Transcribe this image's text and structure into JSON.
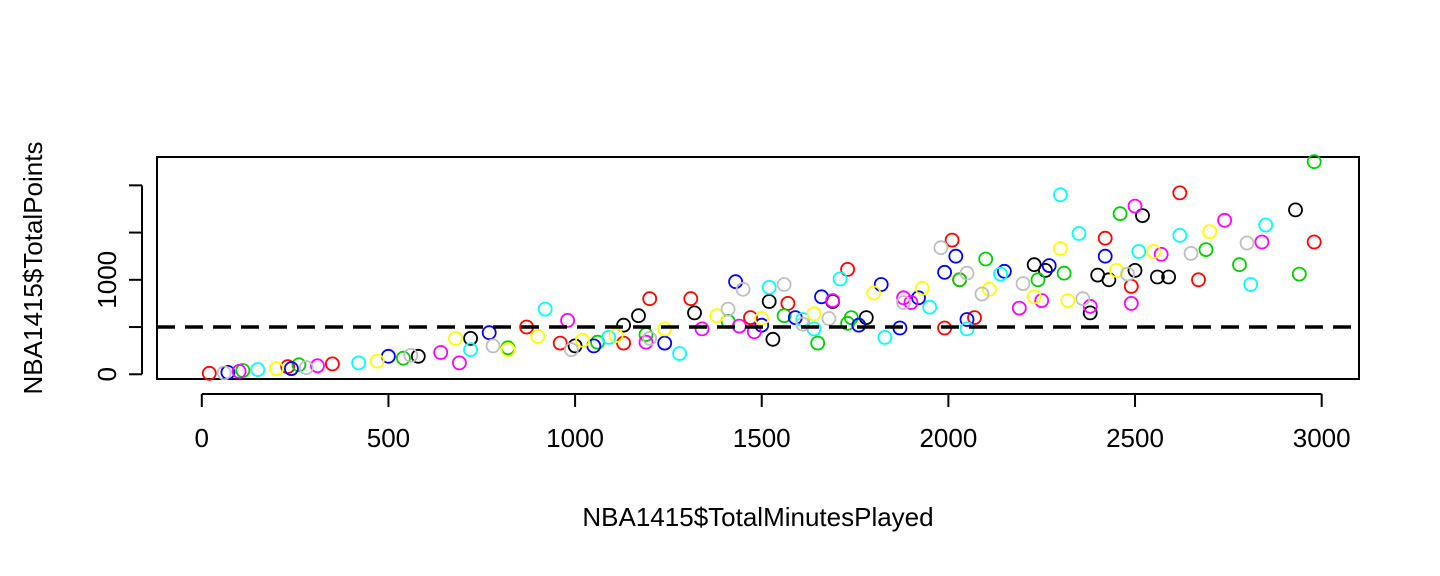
{
  "chart_data": {
    "type": "scatter",
    "title": "",
    "xlabel": "NBA1415$TotalMinutesPlayed",
    "ylabel": "NBA1415$TotalPoints",
    "xlim": [
      -120,
      3100
    ],
    "ylim": [
      -50,
      2300
    ],
    "x_ticks": [
      0,
      500,
      1000,
      1500,
      2000,
      2500,
      3000
    ],
    "y_ticks": [
      0,
      500,
      1000,
      1500,
      2000
    ],
    "y_tick_labels": [
      "0",
      "",
      "1000",
      "",
      ""
    ],
    "grid": false,
    "legend": "none",
    "reference_line": {
      "y": 500,
      "style": "dashed",
      "color": "#000000"
    },
    "palette": [
      "#000000",
      "#DF536B",
      "#61D04F",
      "#2297E6",
      "#28E2E5",
      "#CD0BBC",
      "#F5C710",
      "#9E9E9E",
      "#FF0000",
      "#00CD00",
      "#0000FF",
      "#FF00FF",
      "#00FFFF",
      "#FFFF00",
      "#BEBEBE"
    ],
    "series": [
      {
        "name": "",
        "color": "#000000",
        "points": [
          [
            580,
            190
          ],
          [
            720,
            380
          ],
          [
            1000,
            300
          ],
          [
            1130,
            520
          ],
          [
            1170,
            620
          ],
          [
            1320,
            650
          ],
          [
            1520,
            770
          ],
          [
            1530,
            370
          ],
          [
            1690,
            770
          ],
          [
            1780,
            600
          ],
          [
            2230,
            1160
          ],
          [
            2260,
            1100
          ],
          [
            2400,
            1050
          ],
          [
            2430,
            1000
          ],
          [
            2500,
            1100
          ],
          [
            2520,
            1680
          ],
          [
            2560,
            1030
          ],
          [
            2590,
            1030
          ],
          [
            2930,
            1740
          ],
          [
            2380,
            650
          ]
        ]
      },
      {
        "name": "",
        "color": "#FF0000",
        "points": [
          [
            20,
            10
          ],
          [
            230,
            80
          ],
          [
            350,
            110
          ],
          [
            870,
            500
          ],
          [
            960,
            330
          ],
          [
            1130,
            330
          ],
          [
            1200,
            800
          ],
          [
            1310,
            800
          ],
          [
            1470,
            600
          ],
          [
            1570,
            750
          ],
          [
            1730,
            1110
          ],
          [
            2010,
            1420
          ],
          [
            2030,
            1000
          ],
          [
            2070,
            600
          ],
          [
            2420,
            1440
          ],
          [
            2490,
            930
          ],
          [
            2620,
            1920
          ],
          [
            2670,
            1000
          ],
          [
            2980,
            1400
          ],
          [
            1990,
            490
          ]
        ]
      },
      {
        "name": "",
        "color": "#00CD00",
        "points": [
          [
            110,
            40
          ],
          [
            260,
            100
          ],
          [
            540,
            170
          ],
          [
            820,
            280
          ],
          [
            1060,
            340
          ],
          [
            1190,
            420
          ],
          [
            1410,
            560
          ],
          [
            1560,
            620
          ],
          [
            1650,
            330
          ],
          [
            1740,
            600
          ],
          [
            2030,
            1000
          ],
          [
            2100,
            1220
          ],
          [
            2240,
            1000
          ],
          [
            2310,
            1070
          ],
          [
            2460,
            1700
          ],
          [
            2690,
            1320
          ],
          [
            2780,
            1160
          ],
          [
            2940,
            1060
          ],
          [
            2980,
            2250
          ],
          [
            1730,
            540
          ]
        ]
      },
      {
        "name": "",
        "color": "#0000FF",
        "points": [
          [
            70,
            20
          ],
          [
            240,
            60
          ],
          [
            500,
            190
          ],
          [
            770,
            440
          ],
          [
            1050,
            300
          ],
          [
            1240,
            330
          ],
          [
            1430,
            980
          ],
          [
            1500,
            520
          ],
          [
            1590,
            600
          ],
          [
            1660,
            820
          ],
          [
            1820,
            950
          ],
          [
            1920,
            810
          ],
          [
            1990,
            1080
          ],
          [
            2020,
            1250
          ],
          [
            2050,
            580
          ],
          [
            2150,
            1090
          ],
          [
            2270,
            1150
          ],
          [
            2420,
            1250
          ],
          [
            1760,
            520
          ],
          [
            1870,
            490
          ]
        ]
      },
      {
        "name": "",
        "color": "#00FFFF",
        "points": [
          [
            150,
            50
          ],
          [
            420,
            120
          ],
          [
            720,
            260
          ],
          [
            920,
            690
          ],
          [
            1090,
            390
          ],
          [
            1280,
            220
          ],
          [
            1520,
            920
          ],
          [
            1640,
            480
          ],
          [
            1710,
            1010
          ],
          [
            1830,
            390
          ],
          [
            2050,
            480
          ],
          [
            2140,
            1060
          ],
          [
            2300,
            1900
          ],
          [
            2350,
            1490
          ],
          [
            2510,
            1300
          ],
          [
            2620,
            1470
          ],
          [
            2810,
            950
          ],
          [
            2850,
            1580
          ],
          [
            1950,
            710
          ],
          [
            1610,
            580
          ]
        ]
      },
      {
        "name": "",
        "color": "#FF00FF",
        "points": [
          [
            100,
            30
          ],
          [
            310,
            90
          ],
          [
            640,
            230
          ],
          [
            690,
            120
          ],
          [
            980,
            570
          ],
          [
            1190,
            340
          ],
          [
            1480,
            450
          ],
          [
            1690,
            780
          ],
          [
            1880,
            810
          ],
          [
            1900,
            760
          ],
          [
            2190,
            700
          ],
          [
            2250,
            780
          ],
          [
            2380,
            720
          ],
          [
            2490,
            750
          ],
          [
            2500,
            1780
          ],
          [
            2570,
            1270
          ],
          [
            2740,
            1630
          ],
          [
            2840,
            1400
          ],
          [
            1340,
            480
          ],
          [
            1440,
            510
          ]
        ]
      },
      {
        "name": "",
        "color": "#FFFF00",
        "points": [
          [
            200,
            60
          ],
          [
            470,
            140
          ],
          [
            680,
            380
          ],
          [
            820,
            260
          ],
          [
            900,
            400
          ],
          [
            1110,
            410
          ],
          [
            1380,
            620
          ],
          [
            1500,
            590
          ],
          [
            1640,
            640
          ],
          [
            1800,
            860
          ],
          [
            1930,
            910
          ],
          [
            2110,
            900
          ],
          [
            2230,
            820
          ],
          [
            2300,
            1330
          ],
          [
            2320,
            780
          ],
          [
            2450,
            1100
          ],
          [
            2550,
            1300
          ],
          [
            2700,
            1510
          ],
          [
            1240,
            480
          ],
          [
            1020,
            360
          ]
        ]
      },
      {
        "name": "",
        "color": "#BEBEBE",
        "points": [
          [
            60,
            15
          ],
          [
            280,
            70
          ],
          [
            560,
            200
          ],
          [
            780,
            300
          ],
          [
            990,
            260
          ],
          [
            1200,
            380
          ],
          [
            1450,
            900
          ],
          [
            1560,
            950
          ],
          [
            1680,
            590
          ],
          [
            1880,
            760
          ],
          [
            1980,
            1340
          ],
          [
            2050,
            1070
          ],
          [
            2200,
            960
          ],
          [
            2360,
            800
          ],
          [
            2480,
            1060
          ],
          [
            2650,
            1280
          ],
          [
            2800,
            1390
          ],
          [
            1410,
            690
          ],
          [
            1610,
            530
          ],
          [
            2090,
            850
          ]
        ]
      }
    ]
  }
}
